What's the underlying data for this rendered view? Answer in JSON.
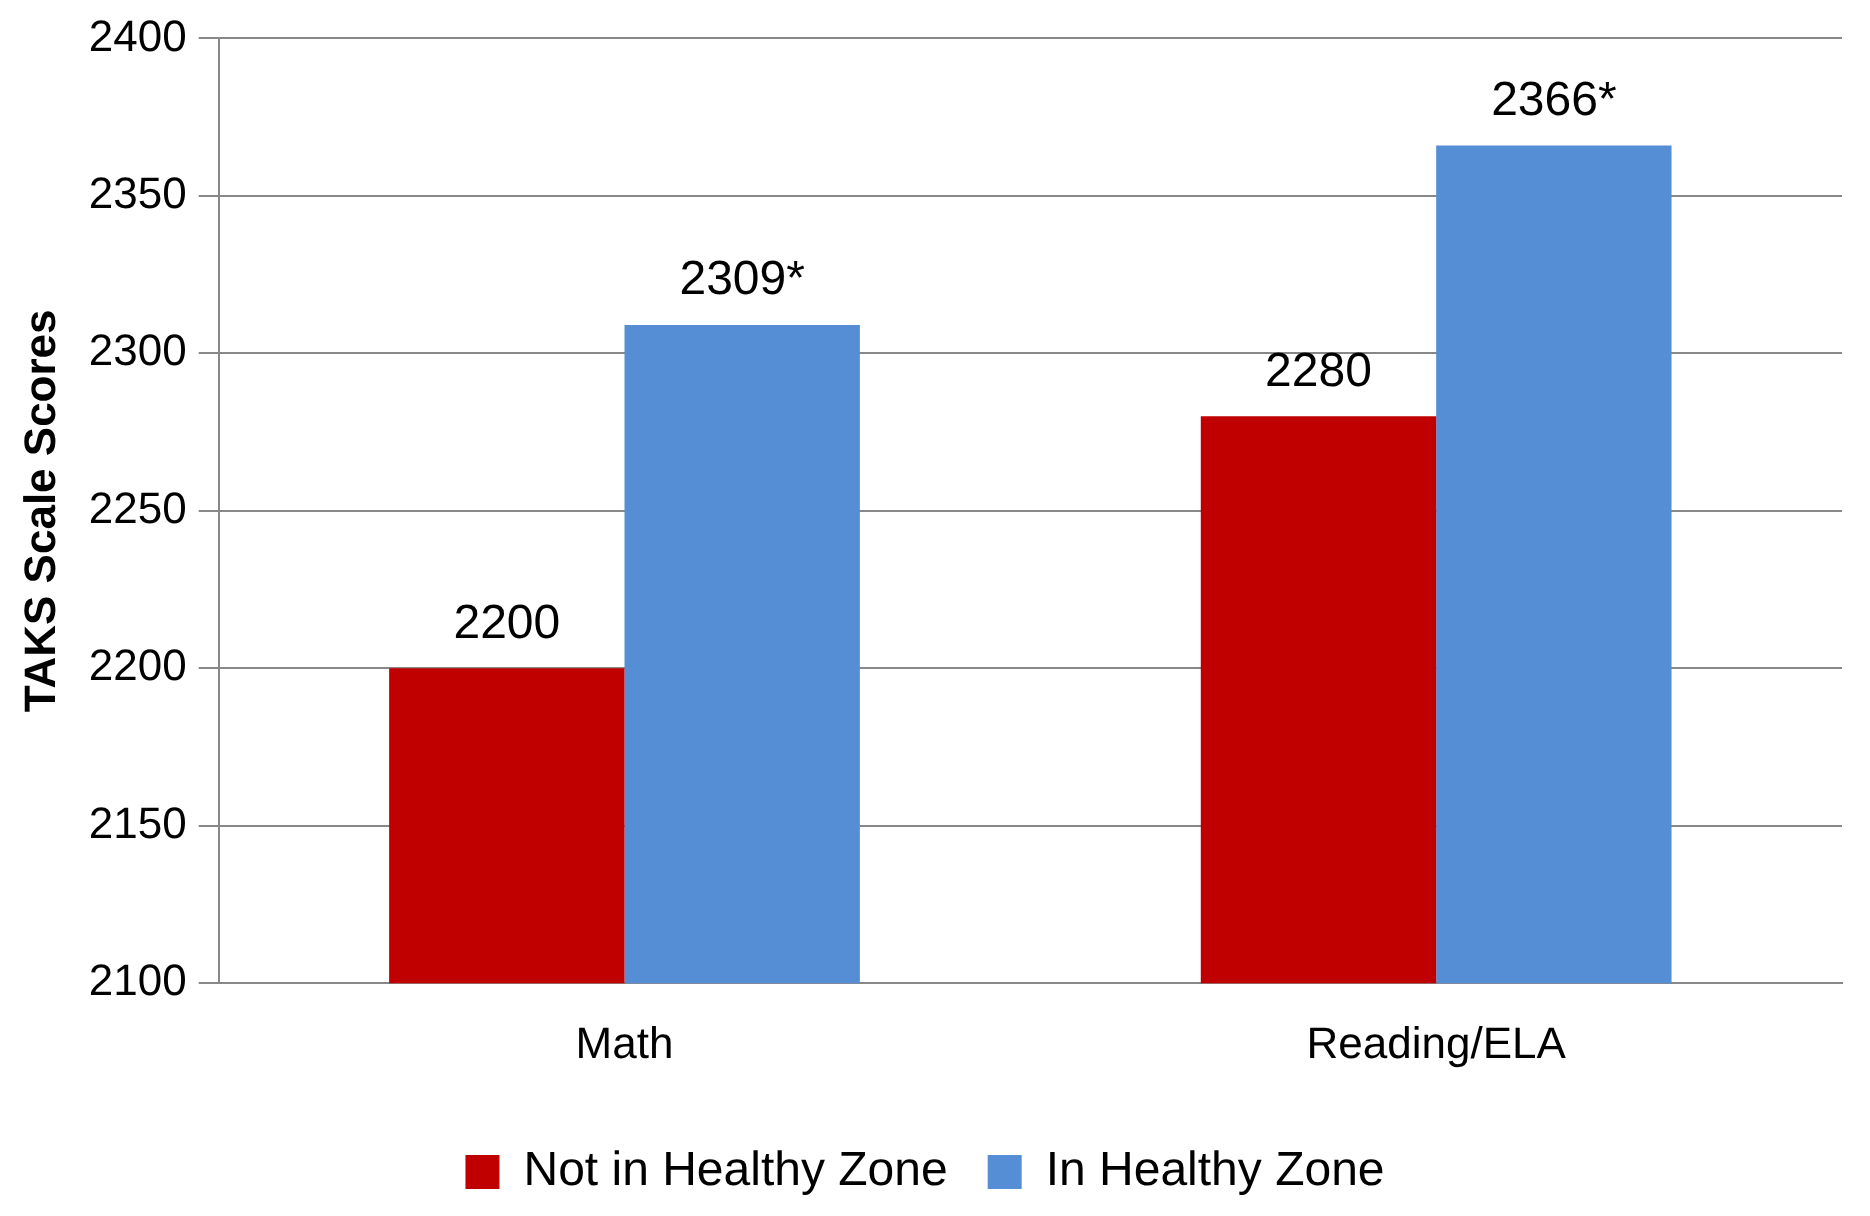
{
  "chart_data": {
    "type": "bar",
    "ylabel": "TAKS Scale Scores",
    "categories": [
      "Math",
      "Reading/ELA"
    ],
    "series": [
      {
        "name": "Not in Healthy Zone",
        "color": "#c00000",
        "values": [
          2200,
          2280
        ],
        "value_labels": [
          "2200",
          "2280"
        ]
      },
      {
        "name": "In Healthy Zone",
        "color": "#558ed5",
        "values": [
          2309,
          2366
        ],
        "value_labels": [
          "2309*",
          "2366*"
        ]
      }
    ],
    "ylim": [
      2100,
      2400
    ],
    "yticks": [
      2100,
      2150,
      2200,
      2250,
      2300,
      2350,
      2400
    ],
    "grid": "y",
    "legend": "bottom"
  }
}
